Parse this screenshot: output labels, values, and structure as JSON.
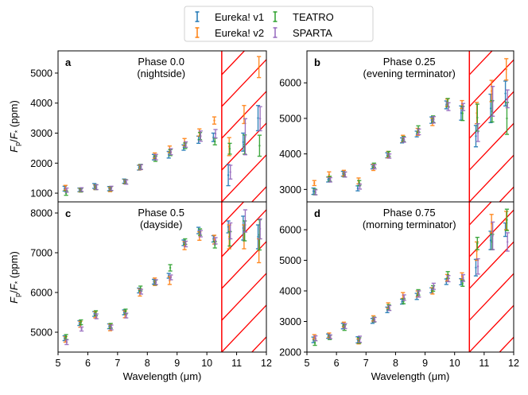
{
  "chart_data": {
    "type": "scatter",
    "subtype": "errorbar",
    "legend": {
      "placement": "top-center",
      "columns": 2,
      "entries": [
        {
          "name": "Eureka! v1",
          "color": "#1f77b4"
        },
        {
          "name": "Eureka! v2",
          "color": "#ff7f0e"
        },
        {
          "name": "TEATRO",
          "color": "#2ca02c"
        },
        {
          "name": "SPARTA",
          "color": "#9467bd"
        }
      ]
    },
    "xlabel": "Wavelength (μm)",
    "ylabel": "Fp/F* (ppm)",
    "xlim": [
      5,
      12
    ],
    "xticks": [
      5,
      6,
      7,
      8,
      9,
      10,
      11,
      12
    ],
    "shaded_region": {
      "x_start": 10.5,
      "x_end": 12,
      "color": "#ff0000",
      "pattern": "hatch"
    },
    "wavelengths": [
      5.25,
      5.75,
      6.25,
      6.75,
      7.25,
      7.75,
      8.25,
      8.75,
      9.25,
      9.75,
      10.25,
      10.75,
      11.25,
      11.75
    ],
    "panels": [
      {
        "letter": "a",
        "title": "Phase 0.0",
        "subtitle": "(nightside)",
        "ylim": [
          710,
          5740
        ],
        "yticks": [
          1000,
          2000,
          3000,
          4000,
          5000
        ],
        "series": [
          {
            "name": "Eureka! v1",
            "values": [
              1150,
              1110,
              1240,
              1150,
              1400,
              1850,
              2200,
              2280,
              2520,
              2780,
              2860,
              1600,
              2700,
              3500
            ],
            "errors": [
              80,
              60,
              80,
              70,
              70,
              80,
              90,
              110,
              90,
              120,
              140,
              350,
              300,
              420
            ]
          },
          {
            "name": "Eureka! v2",
            "values": [
              1180,
              1100,
              1200,
              1120,
              1380,
              1860,
              2250,
              2460,
              2700,
              3020,
              3420,
              2550,
              3620,
              5200
            ],
            "errors": [
              80,
              60,
              80,
              70,
              70,
              80,
              90,
              110,
              120,
              120,
              120,
              300,
              300,
              350
            ]
          },
          {
            "name": "TEATRO",
            "values": [
              1000,
              1100,
              1200,
              1150,
              1380,
              1880,
              2150,
              2350,
              2580,
              2900,
              2720,
              2480,
              2620,
              2580
            ],
            "errors": [
              70,
              60,
              80,
              70,
              70,
              80,
              90,
              100,
              90,
              120,
              110,
              180,
              320,
              350
            ]
          },
          {
            "name": "SPARTA",
            "values": [
              1100,
              1120,
              1200,
              1160,
              1370,
              1870,
              2200,
              2380,
              2620,
              2900,
              2980,
              1700,
              2880,
              3480
            ],
            "errors": [
              70,
              60,
              80,
              70,
              70,
              80,
              90,
              100,
              90,
              170,
              140,
              230,
              600,
              400
            ]
          }
        ]
      },
      {
        "letter": "b",
        "title": "Phase 0.25",
        "subtitle": "(evening terminator)",
        "ylim": [
          2650,
          6900
        ],
        "yticks": [
          3000,
          4000,
          5000,
          6000
        ],
        "series": [
          {
            "name": "Eureka! v1",
            "values": [
              2950,
              3280,
              3440,
              3030,
              3640,
              3960,
              4380,
              4560,
              4950,
              5380,
              5150,
              4500,
              5280,
              5700
            ],
            "errors": [
              90,
              70,
              70,
              70,
              60,
              70,
              70,
              80,
              90,
              110,
              200,
              300,
              400,
              350
            ]
          },
          {
            "name": "Eureka! v2",
            "values": [
              3180,
              3420,
              3460,
              3240,
              3620,
              3980,
              4430,
              4620,
              4900,
              5440,
              5390,
              5150,
              5770,
              6380
            ]
          },
          {
            "name": "TEATRO",
            "values": [
              2930,
              3300,
              3420,
              3180,
              3680,
              4000,
              4420,
              4700,
              4980,
              5440,
              5140,
              5020,
              5200,
              5000
            ],
            "errors": [
              80,
              70,
              70,
              70,
              60,
              70,
              70,
              90,
              90,
              120,
              200,
              380,
              300,
              450
            ]
          },
          {
            "name": "SPARTA",
            "values": [
              2920,
              3270,
              3420,
              3080,
              3640,
              3940,
              4400,
              4620,
              4960,
              5330,
              5320,
              4600,
              5480,
              5550
            ],
            "errors": [
              70,
              60,
              70,
              70,
              60,
              60,
              70,
              80,
              90,
              110,
              100,
              250,
              420,
              250
            ]
          }
        ]
      },
      {
        "letter": "c",
        "title": "Phase 0.5",
        "subtitle": "(dayside)",
        "ylim": [
          4500,
          8280
        ],
        "yticks": [
          5000,
          6000,
          7000,
          8000
        ],
        "series": [
          {
            "name": "Eureka! v1",
            "values": [
              4850,
              5230,
              5460,
              5150,
              5500,
              6050,
              6270,
              6420,
              7250,
              7560,
              7350,
              7650,
              7620,
              7400
            ],
            "errors": [
              60,
              60,
              60,
              60,
              60,
              60,
              60,
              60,
              70,
              80,
              80,
              150,
              300,
              300
            ]
          },
          {
            "name": "Eureka! v2",
            "values": [
              4820,
              5200,
              5440,
              5120,
              5450,
              6000,
              6270,
              6300,
              7180,
              7420,
              7330,
              7400,
              7400,
              7050
            ]
          },
          {
            "name": "TEATRO",
            "values": [
              4880,
              5250,
              5480,
              5160,
              5520,
              6100,
              6250,
              6620,
              7280,
              7520,
              7200,
              7350,
              7550,
              7450
            ],
            "errors": [
              60,
              60,
              60,
              60,
              60,
              60,
              60,
              80,
              70,
              80,
              80,
              180,
              250,
              380
            ]
          },
          {
            "name": "SPARTA",
            "values": [
              4750,
              5080,
              5400,
              5120,
              5420,
              6020,
              6260,
              6380,
              7220,
              7480,
              7300,
              7550,
              7800,
              7600
            ],
            "errors": [
              60,
              50,
              60,
              60,
              60,
              60,
              60,
              60,
              70,
              80,
              80,
              200,
              280,
              250
            ]
          }
        ]
      },
      {
        "letter": "d",
        "title": "Phase 0.75",
        "subtitle": "(morning terminator)",
        "ylim": [
          2000,
          6910
        ],
        "yticks": [
          2000,
          3000,
          4000,
          5000,
          6000
        ],
        "series": [
          {
            "name": "Eureka! v1",
            "values": [
              2400,
              2520,
              2850,
              2400,
              3020,
              3380,
              3650,
              3820,
              4020,
              4300,
              4300,
              4760,
              5650,
              6000
            ],
            "errors": [
              90,
              70,
              90,
              100,
              80,
              90,
              80,
              100,
              80,
              90,
              100,
              270,
              300,
              220
            ]
          },
          {
            "name": "Eureka! v2",
            "values": [
              2500,
              2550,
              2900,
              2350,
              3100,
              3520,
              3850,
              3900,
              4000,
              4430,
              4480,
              5300,
              6200,
              6300
            ]
          },
          {
            "name": "TEATRO",
            "values": [
              2300,
              2480,
              2800,
              2380,
              3060,
              3460,
              3660,
              3950,
              4080,
              4520,
              4250,
              5550,
              5600,
              6320
            ],
            "errors": [
              80,
              70,
              90,
              90,
              80,
              90,
              80,
              90,
              90,
              110,
              100,
              200,
              250,
              350
            ]
          },
          {
            "name": "SPARTA",
            "values": [
              2450,
              2500,
              2850,
              2420,
              3060,
              3440,
              3780,
              3900,
              4150,
              4400,
              4420,
              4800,
              5800,
              5600
            ],
            "errors": [
              80,
              60,
              80,
              100,
              70,
              80,
              90,
              100,
              100,
              100,
              110,
              250,
              450,
              300
            ]
          }
        ]
      }
    ],
    "series_x_offsets": [
      0,
      0.0,
      0.0,
      0.0
    ]
  }
}
